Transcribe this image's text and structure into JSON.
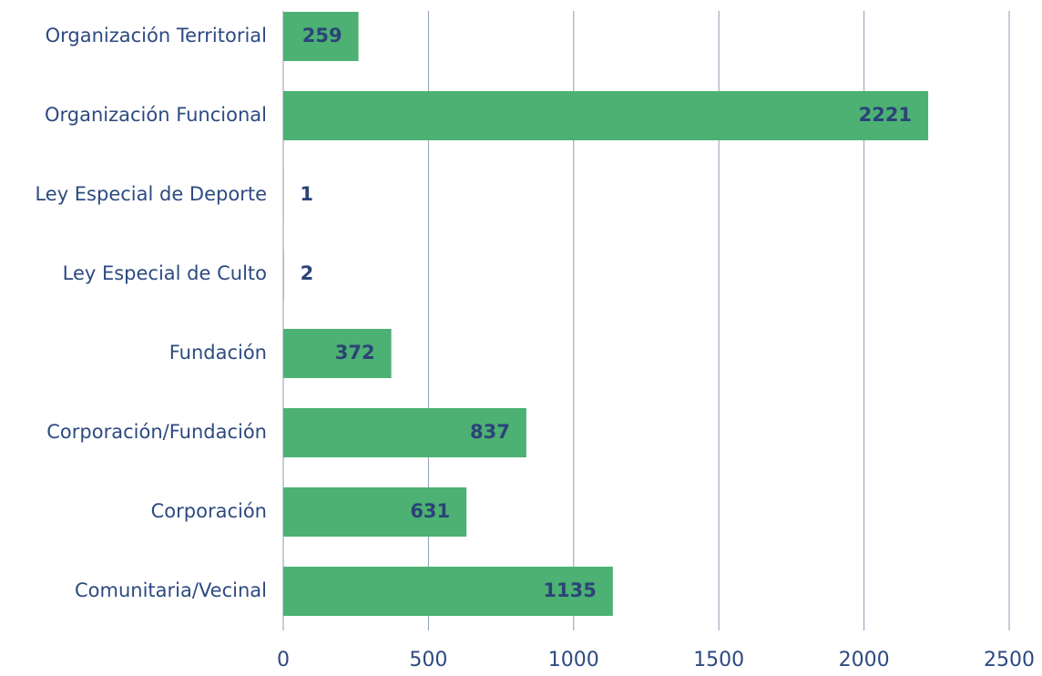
{
  "chart_data": {
    "type": "bar",
    "orientation": "horizontal",
    "categories": [
      "Organización Territorial",
      "Organización Funcional",
      "Ley Especial de Deporte",
      "Ley Especial de Culto",
      "Fundación",
      "Corporación/Fundación",
      "Corporación",
      "Comunitaria/Vecinal"
    ],
    "values": [
      259,
      2221,
      1,
      2,
      372,
      837,
      631,
      1135
    ],
    "color": "#4cb173",
    "xlim": [
      0,
      2500
    ],
    "xticks": [
      0,
      500,
      1000,
      1500,
      2000,
      2500
    ],
    "grid": true
  }
}
